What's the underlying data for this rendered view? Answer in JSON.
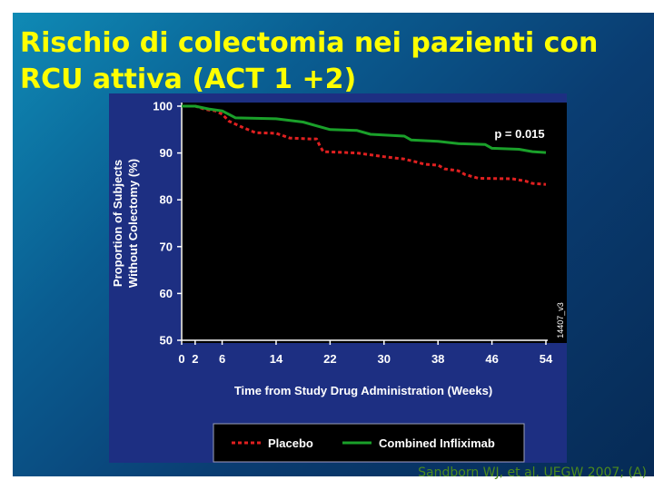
{
  "slide": {
    "title_line1": "Rischio di colectomia nei pazienti con",
    "title_line2": "RCU attiva (ACT 1 +2)",
    "citation": "Sandborn WJ, et al. UEGW 2007; (A)"
  },
  "colors": {
    "background_blue": "#0a5d91",
    "panel": "#1d2f82",
    "plot_area": "#000000",
    "title": "#ffff00",
    "placebo": "#e02020",
    "infliximab": "#1aa02a"
  },
  "chart_data": {
    "type": "line",
    "title": "",
    "xlabel": "Time from Study Drug Administration (Weeks)",
    "ylabel_line1": "Proportion of Subjects",
    "ylabel_line2": "Without Colectomy (%)",
    "xlim": [
      0,
      54
    ],
    "ylim": [
      50,
      100
    ],
    "xticks": [
      0,
      2,
      6,
      14,
      22,
      30,
      38,
      46,
      54
    ],
    "yticks": [
      100,
      90,
      80,
      70,
      60,
      50
    ],
    "grid": false,
    "legend_position": "bottom",
    "annotation": "p = 0.015",
    "watermark": "14407_v3",
    "series": [
      {
        "name": "Placebo",
        "style": "dashed",
        "color": "#e02020",
        "points": [
          [
            0,
            100
          ],
          [
            2,
            100
          ],
          [
            3.5,
            99.3
          ],
          [
            5,
            99
          ],
          [
            6,
            98.3
          ],
          [
            7,
            96.8
          ],
          [
            9,
            95.5
          ],
          [
            11,
            94.3
          ],
          [
            12,
            94.3
          ],
          [
            14,
            94.2
          ],
          [
            16,
            93.2
          ],
          [
            19,
            93.0
          ],
          [
            20,
            93.0
          ],
          [
            20.5,
            91.5
          ],
          [
            21,
            90.3
          ],
          [
            26,
            90.0
          ],
          [
            30,
            89.2
          ],
          [
            33,
            88.7
          ],
          [
            35,
            88.0
          ],
          [
            36,
            87.6
          ],
          [
            38,
            87.4
          ],
          [
            39,
            86.6
          ],
          [
            41,
            86.2
          ],
          [
            42,
            85.4
          ],
          [
            43,
            85.0
          ],
          [
            44,
            84.6
          ],
          [
            49,
            84.5
          ],
          [
            51,
            84.0
          ],
          [
            52,
            83.5
          ],
          [
            54,
            83.3
          ]
        ]
      },
      {
        "name": "Combined Infliximab",
        "style": "solid",
        "color": "#1aa02a",
        "points": [
          [
            0,
            100
          ],
          [
            2,
            100
          ],
          [
            4,
            99.4
          ],
          [
            6,
            99.0
          ],
          [
            8,
            97.5
          ],
          [
            14,
            97.3
          ],
          [
            18,
            96.6
          ],
          [
            20,
            95.8
          ],
          [
            22,
            95.0
          ],
          [
            26,
            94.8
          ],
          [
            28,
            94.0
          ],
          [
            33,
            93.6
          ],
          [
            34,
            92.8
          ],
          [
            38,
            92.5
          ],
          [
            41,
            92.0
          ],
          [
            45,
            91.8
          ],
          [
            46,
            91.0
          ],
          [
            50,
            90.8
          ],
          [
            52,
            90.3
          ],
          [
            54,
            90.1
          ]
        ]
      }
    ]
  }
}
